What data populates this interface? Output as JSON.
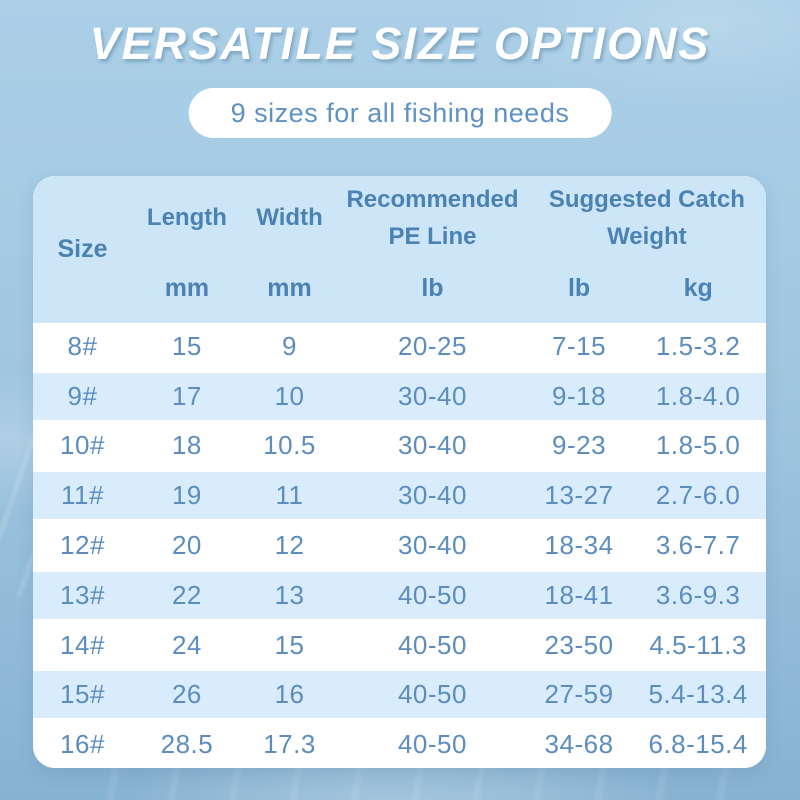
{
  "page": {
    "title": "VERSATILE SIZE OPTIONS",
    "subtitle": "9 sizes for all fishing needs"
  },
  "table": {
    "columns": {
      "size": {
        "label": "Size"
      },
      "length": {
        "label": "Length",
        "unit": "mm"
      },
      "width": {
        "label": "Width",
        "unit": "mm"
      },
      "pe_line": {
        "line1": "Recommended",
        "line2": "PE Line",
        "unit": "lb"
      },
      "catch_weight": {
        "line1": "Suggested Catch",
        "line2": "Weight",
        "unit_lb": "lb",
        "unit_kg": "kg"
      }
    },
    "rows": [
      {
        "size": "8#",
        "length": "15",
        "width": "9",
        "pe_line": "20-25",
        "catch_lb": "7-15",
        "catch_kg": "1.5-3.2"
      },
      {
        "size": "9#",
        "length": "17",
        "width": "10",
        "pe_line": "30-40",
        "catch_lb": "9-18",
        "catch_kg": "1.8-4.0"
      },
      {
        "size": "10#",
        "length": "18",
        "width": "10.5",
        "pe_line": "30-40",
        "catch_lb": "9-23",
        "catch_kg": "1.8-5.0"
      },
      {
        "size": "11#",
        "length": "19",
        "width": "11",
        "pe_line": "30-40",
        "catch_lb": "13-27",
        "catch_kg": "2.7-6.0"
      },
      {
        "size": "12#",
        "length": "20",
        "width": "12",
        "pe_line": "30-40",
        "catch_lb": "18-34",
        "catch_kg": "3.6-7.7"
      },
      {
        "size": "13#",
        "length": "22",
        "width": "13",
        "pe_line": "40-50",
        "catch_lb": "18-41",
        "catch_kg": "3.6-9.3"
      },
      {
        "size": "14#",
        "length": "24",
        "width": "15",
        "pe_line": "40-50",
        "catch_lb": "23-50",
        "catch_kg": "4.5-11.3"
      },
      {
        "size": "15#",
        "length": "26",
        "width": "16",
        "pe_line": "40-50",
        "catch_lb": "27-59",
        "catch_kg": "5.4-13.4"
      },
      {
        "size": "16#",
        "length": "28.5",
        "width": "17.3",
        "pe_line": "40-50",
        "catch_lb": "34-68",
        "catch_kg": "6.8-15.4"
      }
    ]
  },
  "chart_data": {
    "type": "table",
    "title": "VERSATILE SIZE OPTIONS",
    "subtitle": "9 sizes for all fishing needs",
    "columns": [
      "Size",
      "Length mm",
      "Width mm",
      "Recommended PE Line lb",
      "Suggested Catch Weight lb",
      "Suggested Catch Weight kg"
    ],
    "rows": [
      [
        "8#",
        "15",
        "9",
        "20-25",
        "7-15",
        "1.5-3.2"
      ],
      [
        "9#",
        "17",
        "10",
        "30-40",
        "9-18",
        "1.8-4.0"
      ],
      [
        "10#",
        "18",
        "10.5",
        "30-40",
        "9-23",
        "1.8-5.0"
      ],
      [
        "11#",
        "19",
        "11",
        "30-40",
        "13-27",
        "2.7-6.0"
      ],
      [
        "12#",
        "20",
        "12",
        "30-40",
        "18-34",
        "3.6-7.7"
      ],
      [
        "13#",
        "22",
        "13",
        "40-50",
        "18-41",
        "3.6-9.3"
      ],
      [
        "14#",
        "24",
        "15",
        "40-50",
        "23-50",
        "4.5-11.3"
      ],
      [
        "15#",
        "26",
        "16",
        "40-50",
        "27-59",
        "5.4-13.4"
      ],
      [
        "16#",
        "28.5",
        "17.3",
        "40-50",
        "34-68",
        "6.8-15.4"
      ]
    ]
  },
  "colors": {
    "background_top": "#aacfe7",
    "background_bottom": "#87b3d2",
    "title_text": "#ffffff",
    "pill_background": "#ffffff",
    "subtitle_text": "#5e92c3",
    "header_background": "#cde6f7",
    "header_text": "#4b82b4",
    "row_background": "#ffffff",
    "row_alt_background": "#d8ecfc",
    "cell_text": "#5c8dbe"
  }
}
